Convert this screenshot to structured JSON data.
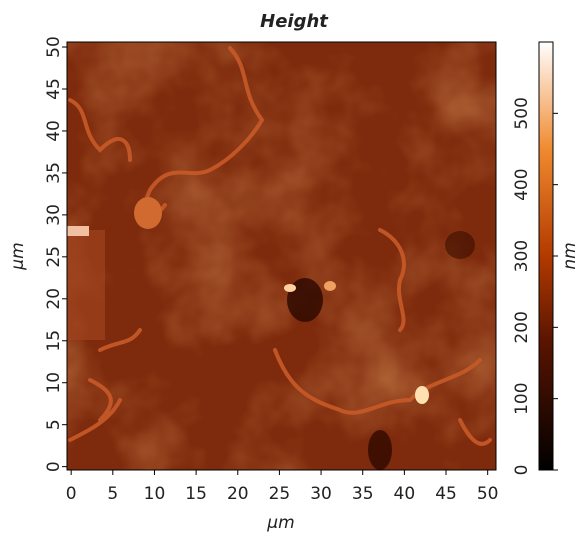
{
  "chart_data": {
    "type": "image",
    "title": "Height",
    "xlabel": "μm",
    "ylabel": "μm",
    "xlim": [
      -0.5,
      51
    ],
    "ylim": [
      -0.4,
      50.6
    ],
    "xticks": [
      0,
      5,
      10,
      15,
      20,
      25,
      30,
      35,
      40,
      45,
      50
    ],
    "yticks": [
      0,
      5,
      10,
      15,
      20,
      25,
      30,
      35,
      40,
      45,
      50
    ],
    "colorbar": {
      "label": "nm",
      "clim": [
        0,
        600
      ],
      "ticks": [
        0,
        100,
        200,
        300,
        400,
        500
      ]
    }
  }
}
